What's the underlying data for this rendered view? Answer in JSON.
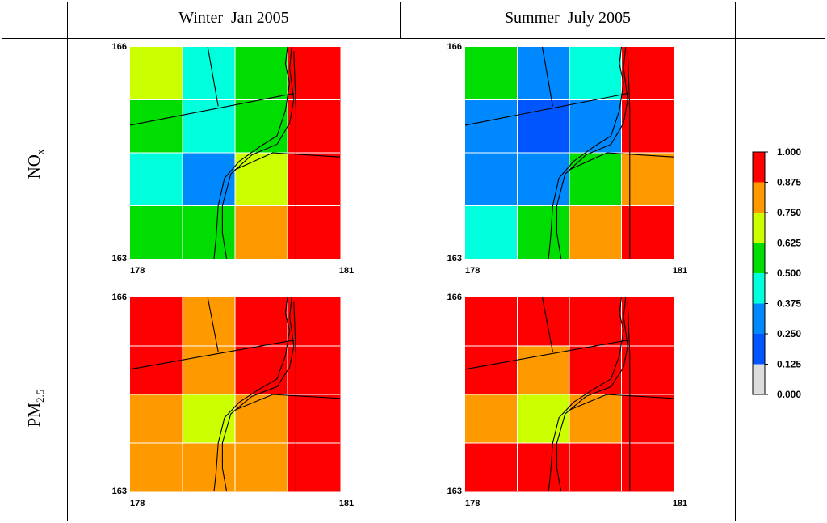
{
  "figure": {
    "column_titles": [
      "Winter–Jan 2005",
      "Summer–July 2005"
    ],
    "row_labels": [
      {
        "main": "NO",
        "sub": "x"
      },
      {
        "main": "PM",
        "sub": "2.5"
      }
    ]
  },
  "colors": {
    "red": "#ff0000",
    "orange": "#ff9900",
    "yellow_green": "#ccff00",
    "green": "#00dd00",
    "cyan": "#00ffdd",
    "blue": "#0088ff",
    "dark_blue": "#0055ff",
    "gray": "#dddddd"
  },
  "chart_data": [
    {
      "type": "heatmap",
      "title": "NOx — Winter–Jan 2005",
      "x_range": [
        178,
        181
      ],
      "y_range": [
        163,
        166
      ],
      "x_tick_labels": [
        "178",
        "181"
      ],
      "y_tick_labels": [
        "166",
        "163"
      ],
      "grid_values": [
        [
          0.7,
          0.45,
          0.55,
          1.0
        ],
        [
          0.55,
          0.45,
          0.55,
          1.0
        ],
        [
          0.45,
          0.3,
          0.7,
          1.0
        ],
        [
          0.55,
          0.55,
          0.8,
          1.0
        ]
      ]
    },
    {
      "type": "heatmap",
      "title": "NOx — Summer–July 2005",
      "x_range": [
        178,
        181
      ],
      "y_range": [
        163,
        166
      ],
      "x_tick_labels": [
        "178",
        "181"
      ],
      "y_tick_labels": [
        "166",
        "163"
      ],
      "grid_values": [
        [
          0.55,
          0.3,
          0.45,
          1.0
        ],
        [
          0.3,
          0.2,
          0.3,
          1.0
        ],
        [
          0.3,
          0.3,
          0.55,
          0.8
        ],
        [
          0.45,
          0.55,
          0.8,
          1.0
        ]
      ]
    },
    {
      "type": "heatmap",
      "title": "PM2.5 — Winter–Jan 2005",
      "x_range": [
        178,
        181
      ],
      "y_range": [
        163,
        166
      ],
      "x_tick_labels": [
        "178",
        "181"
      ],
      "y_tick_labels": [
        "166",
        "163"
      ],
      "grid_values": [
        [
          1.0,
          0.8,
          1.0,
          1.0
        ],
        [
          1.0,
          0.8,
          1.0,
          1.0
        ],
        [
          0.8,
          0.7,
          0.8,
          1.0
        ],
        [
          0.8,
          0.8,
          0.8,
          1.0
        ]
      ]
    },
    {
      "type": "heatmap",
      "title": "PM2.5 — Summer–July 2005",
      "x_range": [
        178,
        181
      ],
      "y_range": [
        163,
        166
      ],
      "x_tick_labels": [
        "178",
        "181"
      ],
      "y_tick_labels": [
        "166",
        "163"
      ],
      "grid_values": [
        [
          1.0,
          1.0,
          1.0,
          1.0
        ],
        [
          1.0,
          0.8,
          1.0,
          1.0
        ],
        [
          0.8,
          0.7,
          0.8,
          1.0
        ],
        [
          1.0,
          1.0,
          1.0,
          1.0
        ]
      ]
    }
  ],
  "colorbar": {
    "tick_labels": [
      "1.000",
      "0.875",
      "0.750",
      "0.625",
      "0.500",
      "0.375",
      "0.250",
      "0.125",
      "0.000"
    ],
    "bins": [
      {
        "min": 0.875,
        "max": 1.0,
        "color": "#ff0000"
      },
      {
        "min": 0.75,
        "max": 0.875,
        "color": "#ff9900"
      },
      {
        "min": 0.625,
        "max": 0.75,
        "color": "#ccff00"
      },
      {
        "min": 0.5,
        "max": 0.625,
        "color": "#00dd00"
      },
      {
        "min": 0.375,
        "max": 0.5,
        "color": "#00ffdd"
      },
      {
        "min": 0.25,
        "max": 0.375,
        "color": "#0088ff"
      },
      {
        "min": 0.125,
        "max": 0.25,
        "color": "#0055ff"
      },
      {
        "min": 0.0,
        "max": 0.125,
        "color": "#dddddd"
      }
    ]
  }
}
